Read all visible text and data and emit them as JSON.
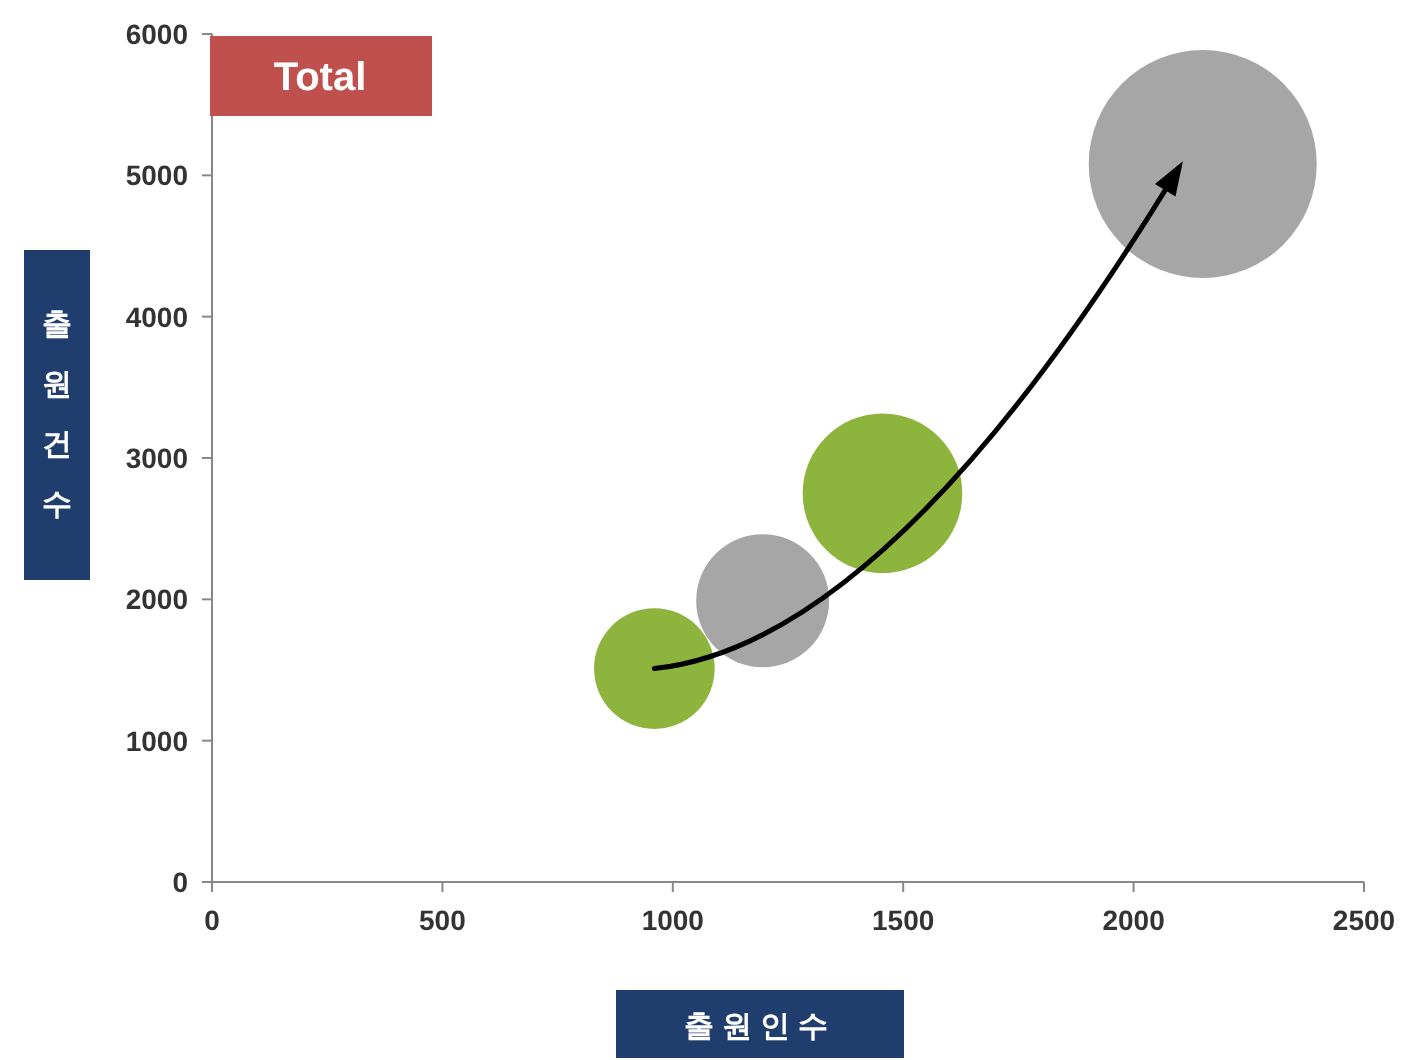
{
  "chart_data": {
    "type": "bubble",
    "title": "Total",
    "xlabel": "출원인수",
    "ylabel": "출원건수",
    "x": [
      960,
      1195,
      1455,
      2150
    ],
    "values": [
      1510,
      1990,
      2750,
      5080
    ],
    "sizes": [
      0.28,
      0.34,
      0.49,
      1
    ],
    "colors": [
      "#8db43c",
      "#a6a6a6",
      "#8db43c",
      "#a6a6a6"
    ],
    "xlim": [
      0,
      2500
    ],
    "ylim": [
      0,
      6000
    ],
    "xticks": [
      0,
      500,
      1000,
      1500,
      2000,
      2500
    ],
    "yticks": [
      0,
      1000,
      2000,
      3000,
      4000,
      5000,
      6000
    ]
  }
}
